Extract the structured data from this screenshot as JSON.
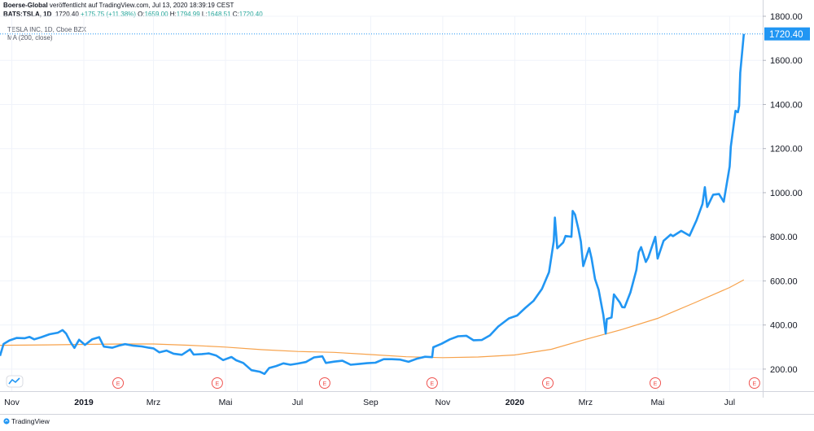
{
  "header": {
    "line1_author": "Boerse-Global",
    "line1_rest": "veröffentlicht auf TradingView.com, Jul 13, 2020 18:39:19 CEST",
    "symbol": "BATS:TSLA, 1D",
    "last": "1720.40",
    "change": "+175.75 (+11.38%)",
    "open_label": "O:",
    "open": "1659.00",
    "high_label": "H:",
    "high": "1794.99",
    "low_label": "L:",
    "low": "1648.51",
    "close_label": "C:",
    "close": "1720.40"
  },
  "legend": {
    "instrument": "TESLA INC, 1D, Cboe BZX",
    "indicator": "MA (200, close)"
  },
  "footer": {
    "brand": "TradingView"
  },
  "colors": {
    "price": "#2196f3",
    "ma": "#f7a24b",
    "earnings": "#ef5350",
    "label_bg": "#2196f3",
    "up": "#26a69a"
  },
  "chart_data": {
    "type": "line",
    "ylim": [
      100,
      1800
    ],
    "y_ticks": [
      200,
      400,
      600,
      800,
      1000,
      1200,
      1400,
      1600,
      1800
    ],
    "y_tick_labels": [
      "200.00",
      "400.00",
      "600.00",
      "800.00",
      "1000.00",
      "1200.00",
      "1400.00",
      "1600.00",
      "1800.00"
    ],
    "x_range": [
      "2018-10-22",
      "2020-07-29"
    ],
    "x_ticks": [
      {
        "label": "Nov",
        "date": "2018-11-01"
      },
      {
        "label": "2019",
        "date": "2019-01-01"
      },
      {
        "label": "Mrz",
        "date": "2019-03-01"
      },
      {
        "label": "Mai",
        "date": "2019-05-01"
      },
      {
        "label": "Jul",
        "date": "2019-07-01"
      },
      {
        "label": "Sep",
        "date": "2019-09-01"
      },
      {
        "label": "Nov",
        "date": "2019-11-01"
      },
      {
        "label": "2020",
        "date": "2020-01-01"
      },
      {
        "label": "Mrz",
        "date": "2020-03-01"
      },
      {
        "label": "Mai",
        "date": "2020-05-01"
      },
      {
        "label": "Jul",
        "date": "2020-07-01"
      }
    ],
    "last_price_label": "1720.40",
    "earnings_marker": "E",
    "earnings_dates": [
      "2019-01-30",
      "2019-04-24",
      "2019-07-24",
      "2019-10-23",
      "2020-01-29",
      "2020-04-29",
      "2020-07-22"
    ],
    "series": [
      {
        "name": "TESLA INC, 1D, Cboe BZX",
        "points": [
          [
            "2018-10-22",
            260
          ],
          [
            "2018-10-25",
            314
          ],
          [
            "2018-10-30",
            330
          ],
          [
            "2018-11-05",
            341
          ],
          [
            "2018-11-12",
            340
          ],
          [
            "2018-11-16",
            346
          ],
          [
            "2018-11-20",
            335
          ],
          [
            "2018-11-26",
            345
          ],
          [
            "2018-12-03",
            358
          ],
          [
            "2018-12-10",
            365
          ],
          [
            "2018-12-14",
            377
          ],
          [
            "2018-12-17",
            361
          ],
          [
            "2018-12-21",
            320
          ],
          [
            "2018-12-24",
            296
          ],
          [
            "2018-12-28",
            333
          ],
          [
            "2019-01-02",
            310
          ],
          [
            "2019-01-08",
            335
          ],
          [
            "2019-01-14",
            345
          ],
          [
            "2019-01-18",
            302
          ],
          [
            "2019-01-25",
            297
          ],
          [
            "2019-01-31",
            307
          ],
          [
            "2019-02-05",
            313
          ],
          [
            "2019-02-12",
            306
          ],
          [
            "2019-02-19",
            303
          ],
          [
            "2019-02-25",
            297
          ],
          [
            "2019-03-01",
            294
          ],
          [
            "2019-03-06",
            276
          ],
          [
            "2019-03-12",
            284
          ],
          [
            "2019-03-18",
            270
          ],
          [
            "2019-03-25",
            265
          ],
          [
            "2019-04-01",
            289
          ],
          [
            "2019-04-04",
            266
          ],
          [
            "2019-04-11",
            268
          ],
          [
            "2019-04-17",
            271
          ],
          [
            "2019-04-23",
            262
          ],
          [
            "2019-04-29",
            241
          ],
          [
            "2019-05-06",
            255
          ],
          [
            "2019-05-10",
            240
          ],
          [
            "2019-05-16",
            228
          ],
          [
            "2019-05-23",
            195
          ],
          [
            "2019-05-30",
            188
          ],
          [
            "2019-06-03",
            178
          ],
          [
            "2019-06-07",
            205
          ],
          [
            "2019-06-13",
            214
          ],
          [
            "2019-06-19",
            226
          ],
          [
            "2019-06-25",
            220
          ],
          [
            "2019-07-01",
            225
          ],
          [
            "2019-07-08",
            232
          ],
          [
            "2019-07-15",
            253
          ],
          [
            "2019-07-22",
            258
          ],
          [
            "2019-07-25",
            228
          ],
          [
            "2019-08-01",
            234
          ],
          [
            "2019-08-08",
            238
          ],
          [
            "2019-08-15",
            220
          ],
          [
            "2019-08-22",
            223
          ],
          [
            "2019-08-29",
            227
          ],
          [
            "2019-09-05",
            229
          ],
          [
            "2019-09-12",
            245
          ],
          [
            "2019-09-19",
            245
          ],
          [
            "2019-09-26",
            243
          ],
          [
            "2019-10-03",
            233
          ],
          [
            "2019-10-10",
            247
          ],
          [
            "2019-10-17",
            256
          ],
          [
            "2019-10-23",
            254
          ],
          [
            "2019-10-24",
            299
          ],
          [
            "2019-10-31",
            315
          ],
          [
            "2019-11-07",
            335
          ],
          [
            "2019-11-14",
            349
          ],
          [
            "2019-11-21",
            351
          ],
          [
            "2019-11-27",
            331
          ],
          [
            "2019-12-04",
            332
          ],
          [
            "2019-12-11",
            353
          ],
          [
            "2019-12-18",
            393
          ],
          [
            "2019-12-27",
            430
          ],
          [
            "2020-01-03",
            443
          ],
          [
            "2020-01-10",
            478
          ],
          [
            "2020-01-17",
            510
          ],
          [
            "2020-01-24",
            564
          ],
          [
            "2020-01-30",
            640
          ],
          [
            "2020-02-03",
            780
          ],
          [
            "2020-02-04",
            887
          ],
          [
            "2020-02-06",
            748
          ],
          [
            "2020-02-11",
            774
          ],
          [
            "2020-02-13",
            804
          ],
          [
            "2020-02-18",
            800
          ],
          [
            "2020-02-19",
            917
          ],
          [
            "2020-02-21",
            901
          ],
          [
            "2020-02-24",
            833
          ],
          [
            "2020-02-26",
            778
          ],
          [
            "2020-02-28",
            667
          ],
          [
            "2020-03-04",
            749
          ],
          [
            "2020-03-06",
            703
          ],
          [
            "2020-03-09",
            608
          ],
          [
            "2020-03-12",
            560
          ],
          [
            "2020-03-16",
            445
          ],
          [
            "2020-03-18",
            361
          ],
          [
            "2020-03-19",
            427
          ],
          [
            "2020-03-23",
            434
          ],
          [
            "2020-03-25",
            539
          ],
          [
            "2020-03-30",
            502
          ],
          [
            "2020-04-01",
            481
          ],
          [
            "2020-04-03",
            480
          ],
          [
            "2020-04-08",
            548
          ],
          [
            "2020-04-13",
            650
          ],
          [
            "2020-04-15",
            730
          ],
          [
            "2020-04-17",
            753
          ],
          [
            "2020-04-21",
            686
          ],
          [
            "2020-04-23",
            705
          ],
          [
            "2020-04-29",
            800
          ],
          [
            "2020-05-01",
            701
          ],
          [
            "2020-05-06",
            782
          ],
          [
            "2020-05-12",
            810
          ],
          [
            "2020-05-14",
            803
          ],
          [
            "2020-05-21",
            827
          ],
          [
            "2020-05-28",
            805
          ],
          [
            "2020-06-03",
            876
          ],
          [
            "2020-06-08",
            949
          ],
          [
            "2020-06-10",
            1025
          ],
          [
            "2020-06-12",
            935
          ],
          [
            "2020-06-17",
            991
          ],
          [
            "2020-06-22",
            994
          ],
          [
            "2020-06-26",
            959
          ],
          [
            "2020-07-01",
            1119
          ],
          [
            "2020-07-02",
            1208
          ],
          [
            "2020-07-06",
            1371
          ],
          [
            "2020-07-08",
            1365
          ],
          [
            "2020-07-09",
            1394
          ],
          [
            "2020-07-10",
            1544
          ],
          [
            "2020-07-13",
            1720
          ]
        ]
      },
      {
        "name": "MA (200, close)",
        "points": [
          [
            "2018-10-22",
            308
          ],
          [
            "2018-12-01",
            310
          ],
          [
            "2019-01-01",
            312
          ],
          [
            "2019-02-01",
            314
          ],
          [
            "2019-03-01",
            314
          ],
          [
            "2019-04-01",
            308
          ],
          [
            "2019-05-01",
            300
          ],
          [
            "2019-06-01",
            288
          ],
          [
            "2019-07-01",
            280
          ],
          [
            "2019-08-01",
            276
          ],
          [
            "2019-09-01",
            266
          ],
          [
            "2019-10-01",
            256
          ],
          [
            "2019-11-01",
            252
          ],
          [
            "2019-12-01",
            255
          ],
          [
            "2020-01-01",
            264
          ],
          [
            "2020-02-01",
            290
          ],
          [
            "2020-03-01",
            335
          ],
          [
            "2020-04-01",
            380
          ],
          [
            "2020-05-01",
            430
          ],
          [
            "2020-06-01",
            500
          ],
          [
            "2020-07-01",
            570
          ],
          [
            "2020-07-13",
            605
          ]
        ]
      }
    ]
  }
}
